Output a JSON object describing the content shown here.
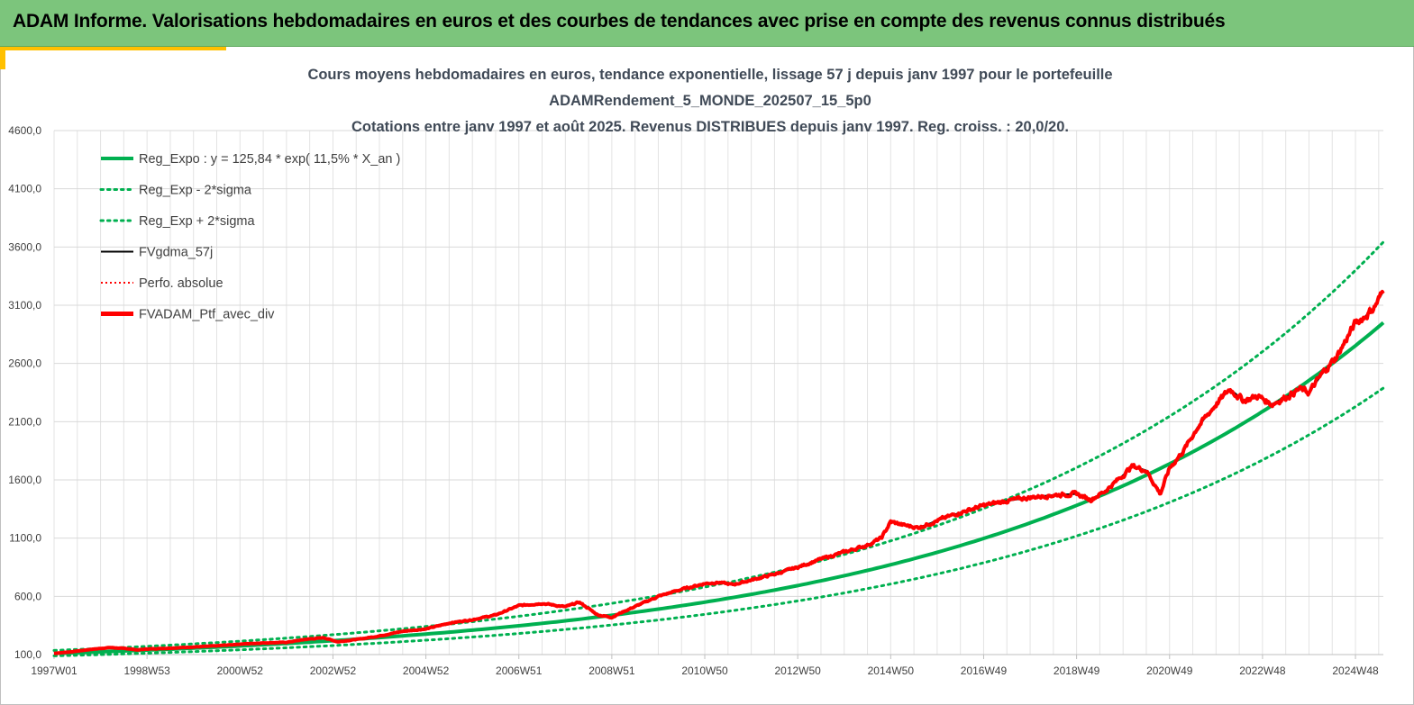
{
  "banner": {
    "title": "ADAM Informe. Valorisations hebdomadaires en euros et des courbes de tendances avec prise en compte des revenus connus distribués"
  },
  "chart_data": {
    "type": "line",
    "title_lines": [
      "Cours moyens hebdomadaires  en euros, tendance exponentielle, lissage 57 j depuis janv 1997 pour le portefeuille",
      "ADAMRendement_5_MONDE_202507_15_5p0",
      "Cotations  entre janv 1997 et août 2025. Revenus DISTRIBUES depuis janv 1997. Reg. croiss. : 20,0/20."
    ],
    "ylim": [
      100,
      4600
    ],
    "y_ticks": [
      "100,0",
      "600,0",
      "1100,0",
      "1600,0",
      "2100,0",
      "2600,0",
      "3100,0",
      "3600,0",
      "4100,0",
      "4600,0"
    ],
    "x_range_years": [
      1997.0,
      2025.6
    ],
    "x_ticks": [
      {
        "label": "1997W01",
        "year": 1997.0
      },
      {
        "label": "1998W53",
        "year": 1999.0
      },
      {
        "label": "2000W52",
        "year": 2001.0
      },
      {
        "label": "2002W52",
        "year": 2003.0
      },
      {
        "label": "2004W52",
        "year": 2005.0
      },
      {
        "label": "2006W51",
        "year": 2007.0
      },
      {
        "label": "2008W51",
        "year": 2009.0
      },
      {
        "label": "2010W50",
        "year": 2011.0
      },
      {
        "label": "2012W50",
        "year": 2013.0
      },
      {
        "label": "2014W50",
        "year": 2015.0
      },
      {
        "label": "2016W49",
        "year": 2017.0
      },
      {
        "label": "2018W49",
        "year": 2019.0
      },
      {
        "label": "2020W49",
        "year": 2021.0
      },
      {
        "label": "2022W48",
        "year": 2023.0
      },
      {
        "label": "2024W48",
        "year": 2025.0
      }
    ],
    "grid": true,
    "legend_position": "top-left",
    "regression": {
      "a": 125.84,
      "rate": 0.115,
      "sigma_factor": 1.235
    },
    "series": [
      {
        "name": "Reg_Expo : y = 125,84 * exp( 11,5% *  X_an )",
        "color": "#00b050",
        "style": "solid",
        "kind": "reg"
      },
      {
        "name": "Reg_Exp - 2*sigma",
        "color": "#00b050",
        "style": "dotted",
        "kind": "reg_low"
      },
      {
        "name": "Reg_Exp + 2*sigma",
        "color": "#00b050",
        "style": "dotted",
        "kind": "reg_high"
      },
      {
        "name": "FVgdma_57j",
        "color": "#000000",
        "style": "solid",
        "kind": "smooth"
      },
      {
        "name": "Perfo. absolue",
        "color": "#ff0000",
        "style": "dotted",
        "kind": "perfo"
      },
      {
        "name": "FVADAM_Ptf_avec_div",
        "color": "#ff0000",
        "style": "solid",
        "kind": "main",
        "x": [
          1997.0,
          1997.4,
          1997.8,
          1998.2,
          1998.6,
          1998.8,
          1999.0,
          1999.5,
          2000.0,
          2000.5,
          2001.0,
          2001.5,
          2002.0,
          2002.4,
          2002.8,
          2003.1,
          2003.6,
          2004.0,
          2004.5,
          2005.0,
          2005.5,
          2006.0,
          2006.5,
          2007.0,
          2007.5,
          2008.0,
          2008.3,
          2008.7,
          2009.0,
          2009.2,
          2009.6,
          2010.0,
          2010.5,
          2011.0,
          2011.3,
          2011.6,
          2012.0,
          2012.5,
          2013.0,
          2013.5,
          2014.0,
          2014.5,
          2014.8,
          2015.0,
          2015.3,
          2015.6,
          2016.0,
          2016.5,
          2017.0,
          2017.5,
          2018.0,
          2018.5,
          2019.0,
          2019.3,
          2019.6,
          2020.0,
          2020.2,
          2020.5,
          2020.8,
          2021.0,
          2021.3,
          2021.6,
          2022.0,
          2022.3,
          2022.6,
          2022.9,
          2023.2,
          2023.5,
          2023.8,
          2024.0,
          2024.3,
          2024.6,
          2025.0,
          2025.2,
          2025.4,
          2025.6
        ],
        "values": [
          110,
          125,
          145,
          160,
          150,
          140,
          148,
          155,
          165,
          175,
          190,
          200,
          205,
          230,
          245,
          210,
          235,
          260,
          300,
          320,
          370,
          400,
          440,
          520,
          540,
          510,
          550,
          440,
          420,
          460,
          530,
          600,
          660,
          710,
          720,
          700,
          740,
          790,
          850,
          920,
          980,
          1040,
          1100,
          1240,
          1210,
          1190,
          1250,
          1320,
          1380,
          1420,
          1450,
          1470,
          1480,
          1430,
          1500,
          1640,
          1720,
          1680,
          1480,
          1700,
          1850,
          2050,
          2250,
          2380,
          2280,
          2320,
          2250,
          2310,
          2380,
          2350,
          2520,
          2660,
          2950,
          3000,
          3080,
          3220
        ]
      }
    ]
  }
}
